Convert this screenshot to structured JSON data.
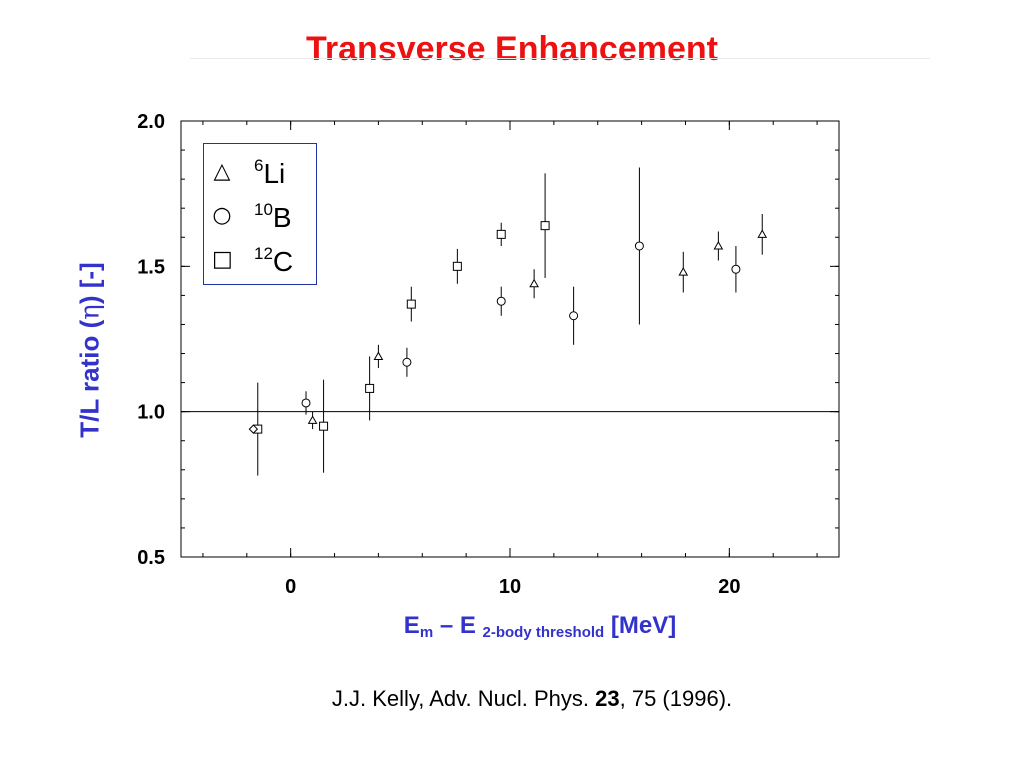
{
  "title": "Transverse Enhancement",
  "xlabel": {
    "main": "E",
    "sub1": "m",
    "mid": " – E ",
    "sub2": "2-body threshold",
    "unit": " [MeV]"
  },
  "ylabel": {
    "pre": "T/L ratio (",
    "greek": "η",
    "post": ") [-]"
  },
  "citation": {
    "pre": "J.J. Kelly, Adv. Nucl. Phys. ",
    "volume": "23",
    "post": ", 75 (1996)."
  },
  "legend": [
    {
      "symbol": "△",
      "mass": "6",
      "element": "Li"
    },
    {
      "symbol": "○",
      "mass": "10",
      "element": "B"
    },
    {
      "symbol": "□",
      "mass": "12",
      "element": "C"
    }
  ],
  "chart_data": {
    "type": "scatter",
    "xlim": [
      -5,
      25
    ],
    "ylim": [
      0.5,
      2.0
    ],
    "x_ticks": [
      0,
      10,
      20
    ],
    "x_tick_labels": [
      "0",
      "10",
      "20"
    ],
    "y_ticks": [
      0.5,
      1.0,
      1.5,
      2.0
    ],
    "y_tick_labels": [
      "0.5",
      "1.0",
      "1.5",
      "2.0"
    ],
    "reference_line": 1.0,
    "grid": false,
    "legend_position": "top-left",
    "series": [
      {
        "name": "6Li",
        "marker": "triangle",
        "points": [
          {
            "x": 1.0,
            "y": 0.97,
            "err": 0.03
          },
          {
            "x": 4.0,
            "y": 1.19,
            "err": 0.04
          },
          {
            "x": 11.1,
            "y": 1.44,
            "err": 0.05
          },
          {
            "x": 17.9,
            "y": 1.48,
            "err": 0.07
          },
          {
            "x": 19.5,
            "y": 1.57,
            "err": 0.05
          },
          {
            "x": 21.5,
            "y": 1.61,
            "err": 0.07
          }
        ]
      },
      {
        "name": "10B",
        "marker": "circle",
        "points": [
          {
            "x": 0.7,
            "y": 1.03,
            "err": 0.04
          },
          {
            "x": 5.3,
            "y": 1.17,
            "err": 0.05
          },
          {
            "x": 9.6,
            "y": 1.38,
            "err": 0.05
          },
          {
            "x": 12.9,
            "y": 1.33,
            "err": 0.1
          },
          {
            "x": 15.9,
            "y": 1.57,
            "err": 0.27
          },
          {
            "x": 20.3,
            "y": 1.49,
            "err": 0.08
          }
        ]
      },
      {
        "name": "12C",
        "marker": "square",
        "points": [
          {
            "x": -1.5,
            "y": 0.94,
            "err": 0.16
          },
          {
            "x": 1.5,
            "y": 0.95,
            "err": 0.16
          },
          {
            "x": 3.6,
            "y": 1.08,
            "err": 0.11
          },
          {
            "x": 5.5,
            "y": 1.37,
            "err": 0.06
          },
          {
            "x": 7.6,
            "y": 1.5,
            "err": 0.06
          },
          {
            "x": 9.6,
            "y": 1.61,
            "err": 0.04
          },
          {
            "x": 11.6,
            "y": 1.64,
            "err": 0.18
          }
        ]
      },
      {
        "name": "",
        "marker": "diamond",
        "points": [
          {
            "x": -1.7,
            "y": 0.94,
            "err": 0.0
          }
        ]
      }
    ]
  }
}
